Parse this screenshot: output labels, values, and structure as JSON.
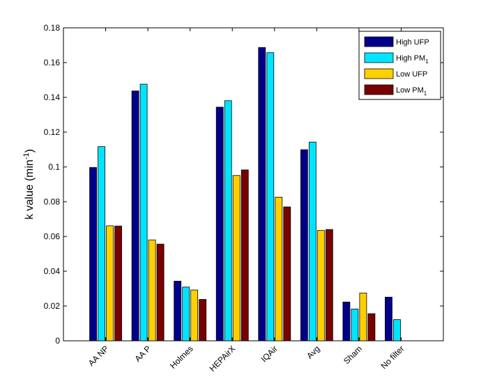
{
  "chart_data": {
    "type": "bar",
    "categories": [
      "AA NP",
      "AA P",
      "Holmes",
      "HEPAirX",
      "IQAir",
      "Avg",
      "Sham",
      "No filter"
    ],
    "series": [
      {
        "name": "High UFP",
        "sub": "",
        "color": "#00008b",
        "values": [
          0.0997,
          0.1437,
          0.0343,
          0.1344,
          0.1687,
          0.1099,
          0.0223,
          0.0251
        ]
      },
      {
        "name": "High PM",
        "sub": "1",
        "color": "#00e5ff",
        "values": [
          0.1117,
          0.1476,
          0.0309,
          0.1381,
          0.1657,
          0.1143,
          0.0183,
          0.0122
        ]
      },
      {
        "name": "Low UFP",
        "sub": "",
        "color": "#ffd000",
        "values": [
          0.0661,
          0.058,
          0.0292,
          0.0951,
          0.0826,
          0.0635,
          0.0275,
          null
        ]
      },
      {
        "name": "Low PM",
        "sub": "1",
        "color": "#7a0000",
        "values": [
          0.066,
          0.0556,
          0.0238,
          0.0983,
          0.077,
          0.064,
          0.0156,
          null
        ]
      }
    ],
    "ylabel": {
      "text": "k value (min",
      "sup": "-1",
      "suffix": ")"
    },
    "xlabel": "",
    "title": "",
    "ylim": [
      0,
      0.18
    ],
    "yticks": [
      "0",
      "0.02",
      "0.04",
      "0.06",
      "0.08",
      "0.1",
      "0.12",
      "0.14",
      "0.16",
      "0.18"
    ],
    "grid": false,
    "legend_position": "top-right"
  }
}
